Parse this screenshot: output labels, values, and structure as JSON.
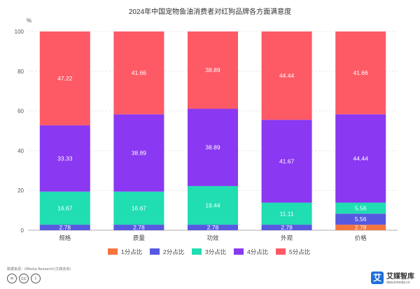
{
  "chart_data": {
    "type": "bar",
    "stacked": true,
    "title": "2024年中国宠物鱼油消费者对红狗品牌各方面满意度",
    "ylabel": "%",
    "xlabel": "",
    "ylim": [
      0,
      100
    ],
    "yticks": [
      0,
      20,
      40,
      60,
      80,
      100
    ],
    "grid": true,
    "legend_position": "bottom",
    "categories": [
      "规格",
      "质量",
      "功效",
      "外观",
      "价格"
    ],
    "series": [
      {
        "name": "1分占比",
        "color": "#f5753e",
        "values": [
          0.0,
          0.0,
          0.0,
          0.0,
          2.78
        ]
      },
      {
        "name": "2分占比",
        "color": "#5759e0",
        "values": [
          2.78,
          2.78,
          2.78,
          2.78,
          5.56
        ]
      },
      {
        "name": "3分占比",
        "color": "#20ddb2",
        "values": [
          16.67,
          16.67,
          19.44,
          11.11,
          5.56
        ]
      },
      {
        "name": "4分占比",
        "color": "#8a38f1",
        "values": [
          33.33,
          38.89,
          38.89,
          41.67,
          44.44
        ]
      },
      {
        "name": "5分占比",
        "color": "#fd5a66",
        "values": [
          47.22,
          41.66,
          38.89,
          44.44,
          41.66
        ]
      }
    ],
    "data_labels": [
      [
        "0.00",
        "0.00",
        "0.00",
        "0.00",
        "2.78"
      ],
      [
        "2.78",
        "2.78",
        "2.78",
        "2.78",
        "5.56"
      ],
      [
        "16.67",
        "16.67",
        "19.44",
        "11.11",
        "5.56"
      ],
      [
        "33.33",
        "38.89",
        "38.89",
        "41.67",
        "44.44"
      ],
      [
        "47.22",
        "41.66",
        "38.89",
        "44.44",
        "41.66"
      ]
    ]
  },
  "footer": {
    "source": "数据来源：iiMedia Research(艾媒咨询)",
    "cc_icons": [
      "=",
      "cc",
      "i"
    ]
  },
  "brand": {
    "logo_char": "艾",
    "name": "艾媒智库",
    "url": "data.iimedia.cn"
  }
}
